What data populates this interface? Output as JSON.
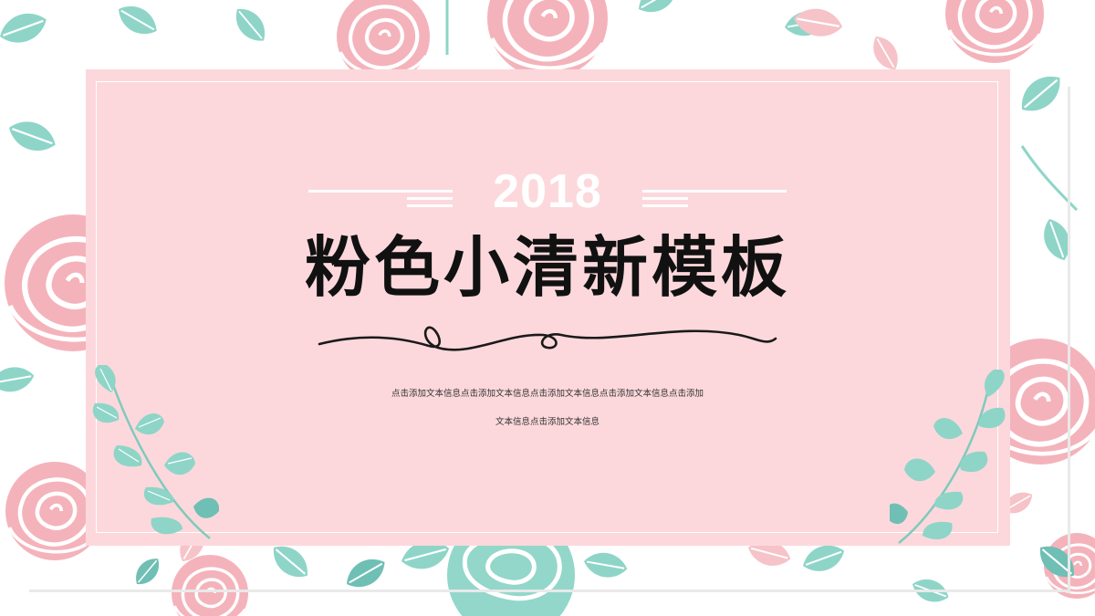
{
  "slide": {
    "year": "2018",
    "title": "粉色小清新模板",
    "subtitle_line1": "点击添加文本信息点击添加文本信息点击添加文本信息点击添加文本信息点击添加",
    "subtitle_line2": "文本信息点击添加文本信息"
  },
  "colors": {
    "card_pink": "#fcd8dc",
    "rose_pink": "#f4b3bb",
    "leaf_mint": "#8ed5c8",
    "leaf_teal": "#6fbfb5",
    "title_black": "#111111",
    "white": "#ffffff"
  },
  "icons": {
    "background": "floral-rose-pattern",
    "divider": "swirl-flourish",
    "left_branch": "leaf-branch",
    "right_branch": "leaf-branch"
  }
}
